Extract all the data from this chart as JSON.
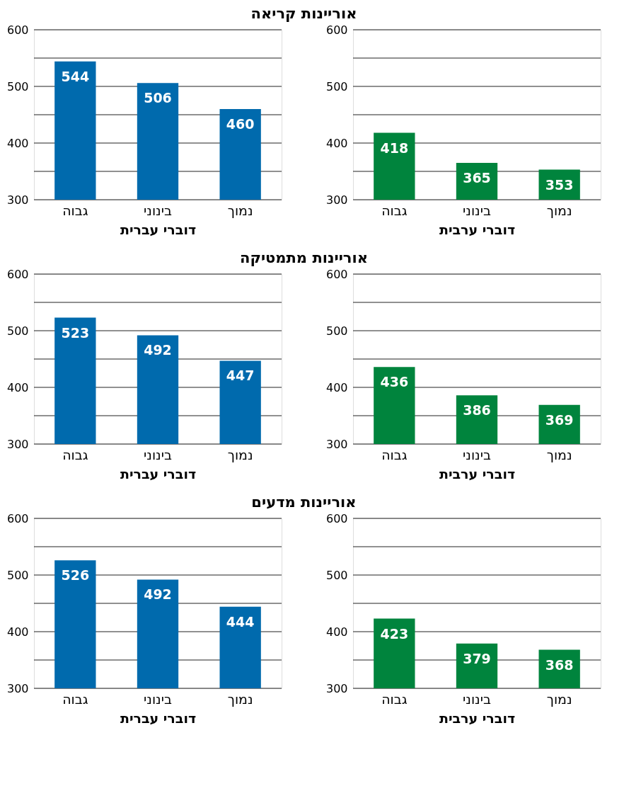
{
  "chart_data": [
    {
      "type": "bar",
      "title": "אוריינות קריאה",
      "categories": [
        "גבוה",
        "בינוני",
        "נמוך"
      ],
      "values": [
        418,
        365,
        353
      ],
      "color": "#00843d",
      "xlabel": "דוברי ערבית",
      "ylim": [
        300,
        600
      ],
      "yticks": [
        300,
        {
          "value": 350,
          "label": null
        },
        400,
        {
          "value": 450,
          "label": null
        },
        500,
        {
          "value": 550,
          "label": null
        },
        600
      ],
      "grid": "y",
      "data_labels": true
    },
    {
      "type": "bar",
      "categories": [
        "גבוה",
        "בינוני",
        "נמוך"
      ],
      "values": [
        544,
        506,
        460
      ],
      "color": "#006aad",
      "xlabel": "דוברי עברית",
      "ylim": [
        300,
        600
      ],
      "yticks": [
        300,
        {
          "value": 350,
          "label": null
        },
        400,
        {
          "value": 450,
          "label": null
        },
        500,
        {
          "value": 550,
          "label": null
        },
        600
      ],
      "grid": "y",
      "data_labels": true
    },
    {
      "type": "bar",
      "title": "אוריינות מתמטיקה",
      "categories": [
        "גבוה",
        "בינוני",
        "נמוך"
      ],
      "values": [
        436,
        386,
        369
      ],
      "color": "#00843d",
      "xlabel": "דוברי ערבית",
      "ylim": [
        300,
        600
      ],
      "yticks": [
        300,
        {
          "value": 350,
          "label": null
        },
        400,
        {
          "value": 450,
          "label": null
        },
        500,
        {
          "value": 550,
          "label": null
        },
        600
      ],
      "grid": "y",
      "data_labels": true
    },
    {
      "type": "bar",
      "categories": [
        "גבוה",
        "בינוני",
        "נמוך"
      ],
      "values": [
        523,
        492,
        447
      ],
      "color": "#006aad",
      "xlabel": "דוברי עברית",
      "ylim": [
        300,
        600
      ],
      "yticks": [
        300,
        {
          "value": 350,
          "label": null
        },
        400,
        {
          "value": 450,
          "label": null
        },
        500,
        {
          "value": 550,
          "label": null
        },
        600
      ],
      "grid": "y",
      "data_labels": true
    },
    {
      "type": "bar",
      "title": "אוריינות מדעים",
      "categories": [
        "גבוה",
        "בינוני",
        "נמוך"
      ],
      "values": [
        423,
        379,
        368
      ],
      "color": "#00843d",
      "xlabel": "דוברי ערבית",
      "ylim": [
        300,
        600
      ],
      "yticks": [
        300,
        {
          "value": 350,
          "label": null
        },
        400,
        {
          "value": 450,
          "label": null
        },
        500,
        {
          "value": 550,
          "label": null
        },
        600
      ],
      "grid": "y",
      "data_labels": true
    },
    {
      "type": "bar",
      "categories": [
        "גבוה",
        "בינוני",
        "נמוך"
      ],
      "values": [
        526,
        492,
        444
      ],
      "color": "#006aad",
      "xlabel": "דוברי עברית",
      "ylim": [
        300,
        600
      ],
      "yticks": [
        300,
        {
          "value": 350,
          "label": null
        },
        400,
        {
          "value": 450,
          "label": null
        },
        500,
        {
          "value": 550,
          "label": null
        },
        600
      ],
      "grid": "y",
      "data_labels": true
    }
  ]
}
